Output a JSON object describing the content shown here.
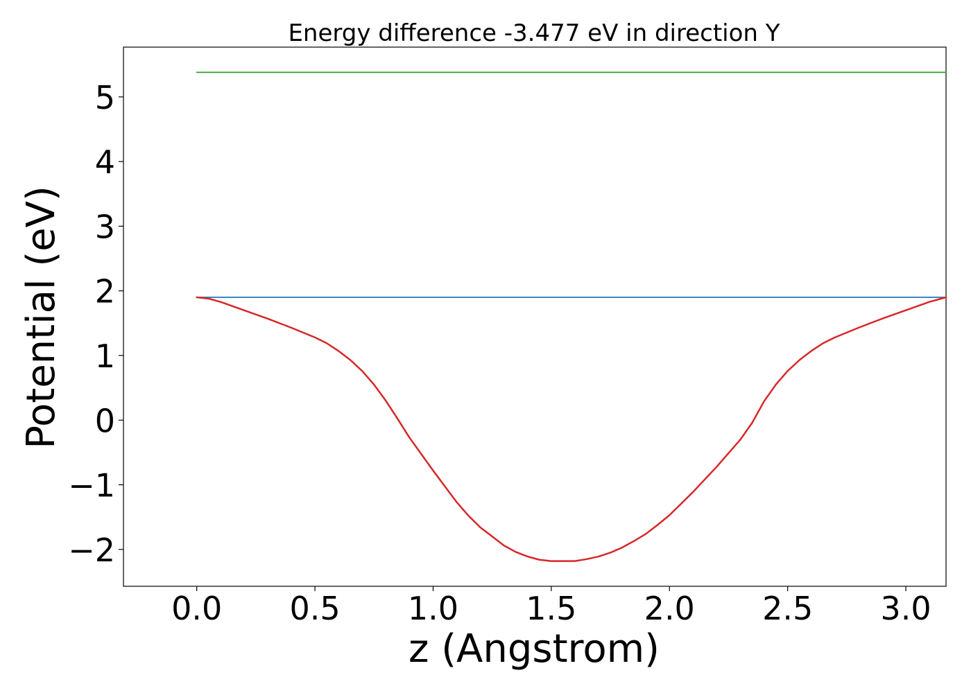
{
  "chart_data": {
    "type": "line",
    "title": "Energy difference -3.477 eV in direction Y",
    "xlabel": "z (Angstrom)",
    "ylabel": "Potential (eV)",
    "xlim": [
      -0.31,
      3.17
    ],
    "ylim": [
      -2.57,
      5.77
    ],
    "xticks": [
      0.0,
      0.5,
      1.0,
      1.5,
      2.0,
      2.5,
      3.0
    ],
    "xtick_labels": [
      "0.0",
      "0.5",
      "1.0",
      "1.5",
      "2.0",
      "2.5",
      "3.0"
    ],
    "yticks": [
      -2,
      -1,
      0,
      1,
      2,
      3,
      4,
      5
    ],
    "ytick_labels": [
      "−2",
      "−1",
      "0",
      "1",
      "2",
      "3",
      "4",
      "5"
    ],
    "grid": false,
    "legend": "none",
    "series": [
      {
        "color": "#2ca02c",
        "x": [
          0.0,
          3.17
        ],
        "y": [
          5.38,
          5.38
        ]
      },
      {
        "color": "#1f77b4",
        "x": [
          0.0,
          3.17
        ],
        "y": [
          1.9,
          1.9
        ]
      },
      {
        "color": "#d62728",
        "x": [
          0.0,
          0.05,
          0.1,
          0.2,
          0.3,
          0.4,
          0.5,
          0.55,
          0.6,
          0.65,
          0.7,
          0.75,
          0.8,
          0.85,
          0.9,
          1.0,
          1.1,
          1.15,
          1.2,
          1.25,
          1.3,
          1.35,
          1.4,
          1.45,
          1.5,
          1.55,
          1.6,
          1.65,
          1.7,
          1.75,
          1.8,
          1.85,
          1.9,
          1.95,
          2.0,
          2.1,
          2.2,
          2.3,
          2.35,
          2.4,
          2.45,
          2.5,
          2.55,
          2.6,
          2.65,
          2.7,
          2.8,
          2.9,
          3.0,
          3.1,
          3.17
        ],
        "y": [
          1.9,
          1.88,
          1.83,
          1.7,
          1.57,
          1.43,
          1.28,
          1.19,
          1.07,
          0.93,
          0.76,
          0.55,
          0.3,
          0.02,
          -0.27,
          -0.78,
          -1.27,
          -1.48,
          -1.66,
          -1.8,
          -1.94,
          -2.04,
          -2.11,
          -2.16,
          -2.18,
          -2.18,
          -2.18,
          -2.15,
          -2.11,
          -2.05,
          -1.97,
          -1.87,
          -1.76,
          -1.62,
          -1.47,
          -1.11,
          -0.72,
          -0.3,
          -0.04,
          0.29,
          0.55,
          0.76,
          0.93,
          1.07,
          1.19,
          1.28,
          1.43,
          1.57,
          1.7,
          1.83,
          1.9
        ]
      }
    ]
  }
}
